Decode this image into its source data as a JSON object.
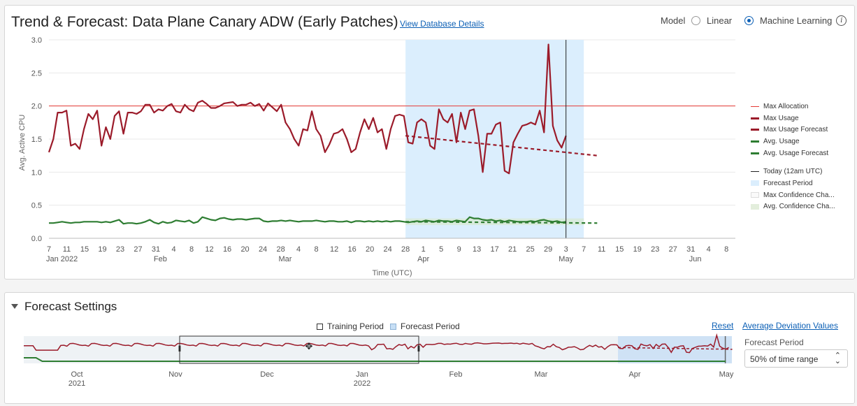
{
  "header": {
    "title": "Trend & Forecast: Data Plane Canary ADW (Early Patches)",
    "details_link": "View Database Details",
    "model_label": "Model",
    "model_options": [
      "Linear",
      "Machine Learning"
    ],
    "model_selected": "Machine Learning",
    "info_icon": "info-icon"
  },
  "colors": {
    "max_usage": "#9b1b2a",
    "avg_usage": "#2e7d32",
    "max_allocation": "#e53935",
    "forecast_period": "#dbeefd"
  },
  "legend": {
    "items": [
      "Max Allocation",
      "Max Usage",
      "Max Usage Forecast",
      "Avg. Usage",
      "Avg. Usage Forecast",
      "Today (12am UTC)",
      "Forecast Period",
      "Max Confidence Cha...",
      "Avg. Confidence Cha..."
    ]
  },
  "chart_data": {
    "type": "line",
    "ylabel": "Avg. Active CPU",
    "xlabel": "Time (UTC)",
    "ylim": [
      0,
      3.0
    ],
    "y_ticks": [
      "0.0",
      "0.5",
      "1.0",
      "1.5",
      "2.0",
      "2.5",
      "3.0"
    ],
    "x_tick_labels": [
      "7",
      "11",
      "15",
      "19",
      "23",
      "27",
      "31",
      "4",
      "8",
      "12",
      "16",
      "20",
      "24",
      "28",
      "4",
      "8",
      "12",
      "16",
      "20",
      "24",
      "28",
      "1",
      "5",
      "9",
      "13",
      "17",
      "21",
      "25",
      "29",
      "3",
      "7",
      "11",
      "15",
      "19",
      "23",
      "27",
      "31",
      "4",
      "8"
    ],
    "month_labels": [
      "Jan 2022",
      "Feb",
      "Mar",
      "Apr",
      "May",
      "Jun"
    ],
    "max_allocation": 2.0,
    "today": "2022-05-03",
    "forecast_period": [
      "2022-03-28",
      "2022-05-07"
    ],
    "x_start": "2022-01-07",
    "x_end": "2022-06-10",
    "series": [
      {
        "name": "Max Usage",
        "values": [
          1.3,
          1.5,
          1.9,
          1.9,
          1.93,
          1.4,
          1.43,
          1.35,
          1.65,
          1.88,
          1.8,
          1.93,
          1.4,
          1.68,
          1.5,
          1.85,
          1.92,
          1.58,
          1.9,
          1.9,
          1.88,
          1.92,
          2.02,
          2.02,
          1.9,
          1.95,
          1.93,
          2.0,
          2.03,
          1.92,
          1.9,
          2.02,
          1.95,
          1.92,
          2.05,
          2.08,
          2.03,
          1.97,
          1.97,
          2.0,
          2.04,
          2.05,
          2.06,
          2.0,
          2.02,
          2.02,
          2.05,
          2.0,
          2.03,
          1.93,
          2.04,
          1.98,
          1.92,
          2.02,
          1.75,
          1.65,
          1.5,
          1.4,
          1.65,
          1.63,
          1.92,
          1.65,
          1.55,
          1.3,
          1.42,
          1.58,
          1.6,
          1.65,
          1.5,
          1.3,
          1.35,
          1.6,
          1.8,
          1.65,
          1.82,
          1.6,
          1.65,
          1.35,
          1.65,
          1.85,
          1.87,
          1.85,
          1.45,
          1.43,
          1.75,
          1.8,
          1.75,
          1.4,
          1.35,
          1.95,
          1.8,
          1.75,
          1.88,
          1.45,
          1.9,
          1.65,
          1.93,
          1.95,
          1.55,
          1.0,
          1.58,
          1.58,
          1.72,
          1.75,
          1.02,
          0.98,
          1.45,
          1.58,
          1.7,
          1.72,
          1.75,
          1.72,
          1.93,
          1.6,
          2.93,
          1.7,
          1.48,
          1.37,
          1.55
        ]
      },
      {
        "name": "Max Usage Forecast",
        "values": [
          1.55,
          1.25
        ]
      },
      {
        "name": "Avg. Usage",
        "values": [
          0.23,
          0.23,
          0.24,
          0.25,
          0.24,
          0.23,
          0.24,
          0.24,
          0.25,
          0.25,
          0.25,
          0.25,
          0.24,
          0.25,
          0.24,
          0.26,
          0.28,
          0.22,
          0.23,
          0.23,
          0.22,
          0.23,
          0.25,
          0.28,
          0.24,
          0.22,
          0.25,
          0.23,
          0.24,
          0.27,
          0.26,
          0.25,
          0.27,
          0.23,
          0.25,
          0.32,
          0.3,
          0.28,
          0.27,
          0.3,
          0.31,
          0.29,
          0.28,
          0.29,
          0.29,
          0.28,
          0.29,
          0.3,
          0.3,
          0.26,
          0.25,
          0.26,
          0.26,
          0.27,
          0.26,
          0.27,
          0.26,
          0.25,
          0.26,
          0.26,
          0.26,
          0.27,
          0.26,
          0.25,
          0.26,
          0.26,
          0.25,
          0.25,
          0.26,
          0.24,
          0.26,
          0.26,
          0.25,
          0.26,
          0.25,
          0.26,
          0.25,
          0.26,
          0.25,
          0.26,
          0.26,
          0.25,
          0.24,
          0.25,
          0.26,
          0.25,
          0.27,
          0.26,
          0.25,
          0.27,
          0.26,
          0.26,
          0.25,
          0.27,
          0.26,
          0.25,
          0.32,
          0.3,
          0.3,
          0.28,
          0.27,
          0.28,
          0.26,
          0.27,
          0.25,
          0.27,
          0.26,
          0.25,
          0.25,
          0.25,
          0.26,
          0.25,
          0.27,
          0.28,
          0.26,
          0.25,
          0.26,
          0.24,
          0.25
        ]
      },
      {
        "name": "Avg. Usage Forecast",
        "values": [
          0.25,
          0.23
        ]
      }
    ]
  },
  "settings": {
    "title": "Forecast Settings",
    "training_period_label": "Training Period",
    "forecast_period_label": "Forecast Period",
    "reset": "Reset",
    "deviation_link": "Average Deviation Values",
    "forecast_period_field_label": "Forecast Period",
    "forecast_period_value": "50% of time range",
    "overview_labels": [
      {
        "month": "Oct",
        "year": "2021"
      },
      {
        "month": "Nov",
        "year": ""
      },
      {
        "month": "Dec",
        "year": ""
      },
      {
        "month": "Jan",
        "year": "2022"
      },
      {
        "month": "Feb",
        "year": ""
      },
      {
        "month": "Mar",
        "year": ""
      },
      {
        "month": "Apr",
        "year": ""
      },
      {
        "month": "May",
        "year": ""
      }
    ]
  }
}
